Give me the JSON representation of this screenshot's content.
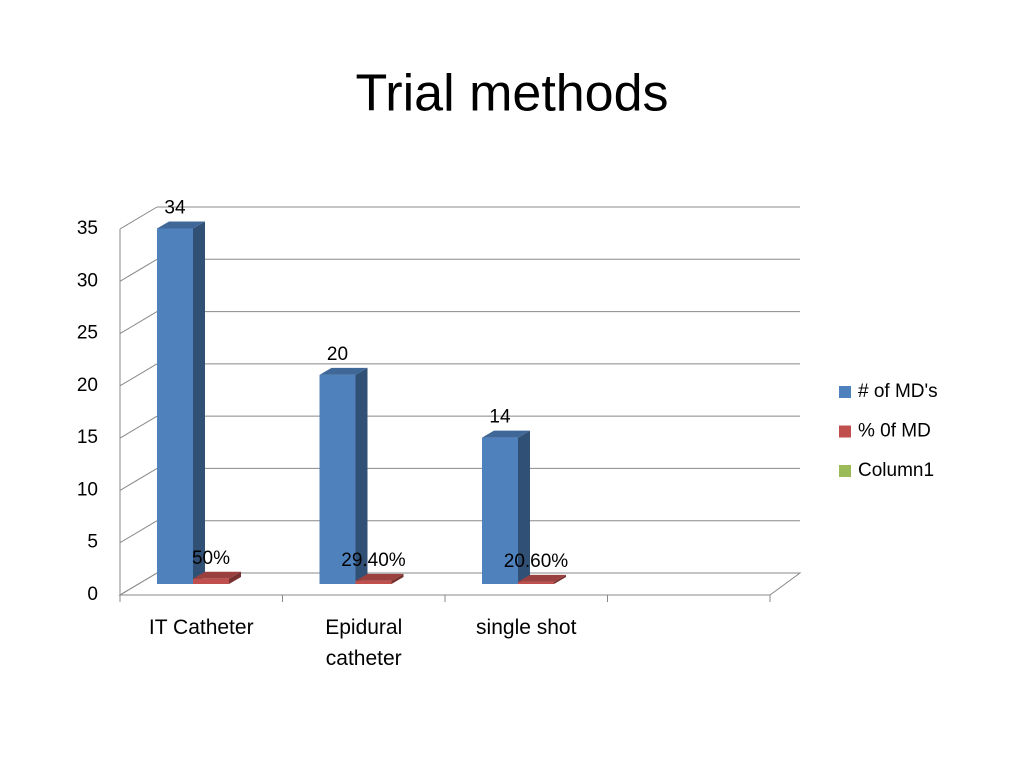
{
  "chart_data": {
    "type": "bar3d",
    "title": "Trial methods",
    "categories": [
      "IT Catheter",
      "Epidural catheter",
      "single shot",
      null
    ],
    "series": [
      {
        "name": "# of MD's",
        "color": "#4f81bd",
        "values": [
          34,
          20,
          14,
          null
        ]
      },
      {
        "name": "% 0f MD",
        "color": "#c0504d",
        "values": [
          0.5,
          0.294,
          0.206,
          null
        ],
        "value_labels": [
          "50%",
          "29.40%",
          "20.60%",
          null
        ]
      },
      {
        "name": "Column1",
        "color": "#9bbb59",
        "values": [
          null,
          null,
          null,
          null
        ]
      }
    ],
    "ylim": [
      0,
      35
    ],
    "yticks": [
      0,
      5,
      10,
      15,
      20,
      25,
      30,
      35
    ],
    "grid": true,
    "legend": "right"
  }
}
